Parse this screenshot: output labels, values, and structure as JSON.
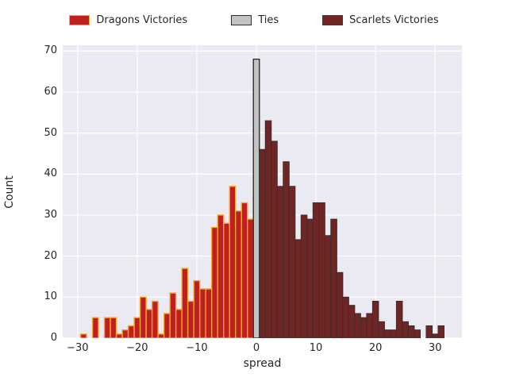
{
  "figure": {
    "bg": "#ffffff",
    "plot_bg": "#eaeaf2",
    "grid_color": "#ffffff",
    "text_color": "#262626"
  },
  "legend": {
    "items": [
      {
        "label": "Dragons Victories",
        "fill": "#bf1f1f",
        "edge": "#f5a72f"
      },
      {
        "label": "Ties",
        "fill": "#c3c3c3",
        "edge": "#2e2e2e"
      },
      {
        "label": "Scarlets Victories",
        "fill": "#702525",
        "edge": "#4a3a3c"
      }
    ]
  },
  "axes": {
    "xlabel": "spread",
    "ylabel": "Count",
    "x_ticks": [
      {
        "value": -30,
        "label": "−30"
      },
      {
        "value": -20,
        "label": "−20"
      },
      {
        "value": -10,
        "label": "−10"
      },
      {
        "value": 0,
        "label": "0"
      },
      {
        "value": 10,
        "label": "10"
      },
      {
        "value": 20,
        "label": "20"
      },
      {
        "value": 30,
        "label": "30"
      }
    ],
    "y_ticks": [
      {
        "value": 0,
        "label": "0"
      },
      {
        "value": 10,
        "label": "10"
      },
      {
        "value": 20,
        "label": "20"
      },
      {
        "value": 30,
        "label": "30"
      },
      {
        "value": 40,
        "label": "40"
      },
      {
        "value": 50,
        "label": "50"
      },
      {
        "value": 60,
        "label": "60"
      },
      {
        "value": 70,
        "label": "70"
      }
    ]
  },
  "chart_data": {
    "type": "bar",
    "title": "",
    "xlabel": "spread",
    "ylabel": "Count",
    "xlim": [
      -32.5,
      34.5
    ],
    "ylim": [
      0,
      71.4
    ],
    "bin_width": 1,
    "grid": true,
    "legend_position": "top-center",
    "series": [
      {
        "name": "Dragons Victories",
        "fill": "#bf1f1f",
        "edge": "#f5a72f",
        "edge_width": 1.4,
        "x": [
          -29,
          -28,
          -27,
          -26,
          -25,
          -24,
          -23,
          -22,
          -21,
          -20,
          -19,
          -18,
          -17,
          -16,
          -15,
          -14,
          -13,
          -12,
          -11,
          -10,
          -9,
          -8,
          -7,
          -6,
          -5,
          -4,
          -3,
          -2,
          -1
        ],
        "values": [
          1,
          0,
          5,
          0,
          5,
          5,
          1,
          2,
          3,
          5,
          10,
          7,
          9,
          1,
          6,
          11,
          7,
          17,
          9,
          14,
          12,
          12,
          27,
          30,
          28,
          37,
          31,
          33,
          29
        ]
      },
      {
        "name": "Scarlets Victories",
        "fill": "#702525",
        "edge": "#3e2b2d",
        "edge_width": 1.0,
        "x": [
          1,
          2,
          3,
          4,
          5,
          6,
          7,
          8,
          9,
          10,
          11,
          12,
          13,
          14,
          15,
          16,
          17,
          18,
          19,
          20,
          21,
          22,
          23,
          24,
          25,
          26,
          27,
          28,
          29,
          30,
          31
        ],
        "values": [
          46,
          53,
          48,
          37,
          43,
          37,
          24,
          30,
          29,
          33,
          33,
          25,
          29,
          16,
          10,
          8,
          6,
          5,
          6,
          9,
          4,
          2,
          2,
          9,
          4,
          3,
          2,
          0,
          3,
          1,
          3
        ]
      },
      {
        "name": "Ties",
        "fill": "#c3c3c3",
        "edge": "#2e2e2e",
        "edge_width": 1.4,
        "x": [
          0
        ],
        "values": [
          68
        ]
      }
    ]
  }
}
